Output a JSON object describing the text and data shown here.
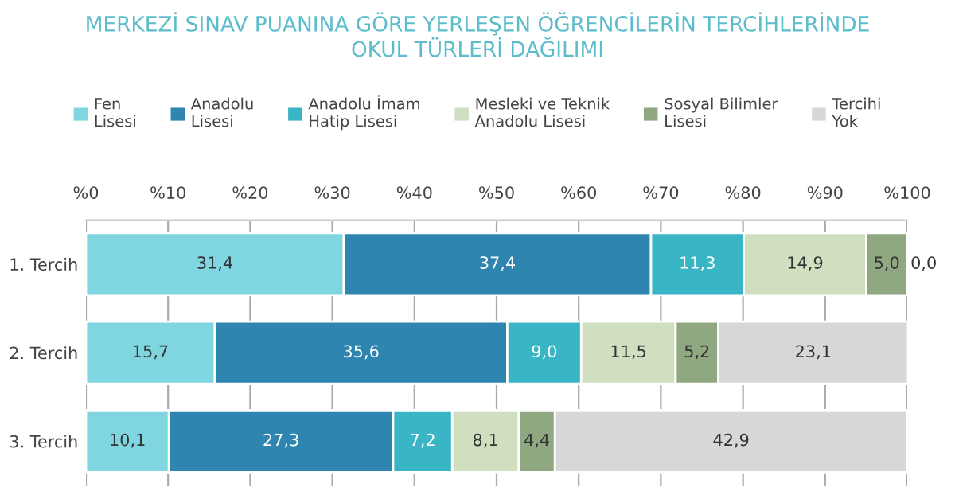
{
  "chart_data": {
    "type": "bar",
    "orientation": "horizontal",
    "stacked": true,
    "title": "MERKEZİ SINAV PUANINA GÖRE YERLEŞEN ÖĞRENCİLERİN TERCİHLERİNDE\nOKUL TÜRLERİ DAĞILIMI",
    "categories": [
      "1. Tercih",
      "2. Tercih",
      "3. Tercih"
    ],
    "series": [
      {
        "name": "Fen\nLisesi",
        "color": "#7fd6e0",
        "values": [
          31.4,
          15.7,
          10.1
        ],
        "value_labels": [
          "31,4",
          "15,7",
          "10,1"
        ]
      },
      {
        "name": "Anadolu\nLisesi",
        "color": "#2e86b0",
        "values": [
          37.4,
          35.6,
          27.3
        ],
        "value_labels": [
          "37,4",
          "35,6",
          "27,3"
        ]
      },
      {
        "name": "Anadolu İmam\nHatip Lisesi",
        "color": "#3ab5c6",
        "values": [
          11.3,
          9.0,
          7.2
        ],
        "value_labels": [
          "11,3",
          "9,0",
          "7,2"
        ]
      },
      {
        "name": "Mesleki ve Teknik\nAnadolu Lisesi",
        "color": "#cfdfc0",
        "values": [
          14.9,
          11.5,
          8.1
        ],
        "value_labels": [
          "14,9",
          "11,5",
          "8,1"
        ]
      },
      {
        "name": "Sosyal Bilimler\nLisesi",
        "color": "#8fa882",
        "values": [
          5.0,
          5.2,
          4.4
        ],
        "value_labels": [
          "5,0",
          "5,2",
          "4,4"
        ]
      },
      {
        "name": "Tercihi\nYok",
        "color": "#d7d7d9",
        "values": [
          0.0,
          23.1,
          42.9
        ],
        "value_labels": [
          "0,0",
          "23,1",
          "42,9"
        ]
      }
    ],
    "xlim": [
      0,
      100
    ],
    "xticks": [
      {
        "value": 0,
        "label": "%0"
      },
      {
        "value": 10,
        "label": "%10"
      },
      {
        "value": 20,
        "label": "%20"
      },
      {
        "value": 30,
        "label": "%30"
      },
      {
        "value": 40,
        "label": "%40"
      },
      {
        "value": 50,
        "label": "%50"
      },
      {
        "value": 60,
        "label": "%60"
      },
      {
        "value": 70,
        "label": "%70"
      },
      {
        "value": 80,
        "label": "%80"
      },
      {
        "value": 90,
        "label": "%90"
      },
      {
        "value": 100,
        "label": "%100"
      }
    ],
    "grid": "x",
    "legend": "top"
  }
}
